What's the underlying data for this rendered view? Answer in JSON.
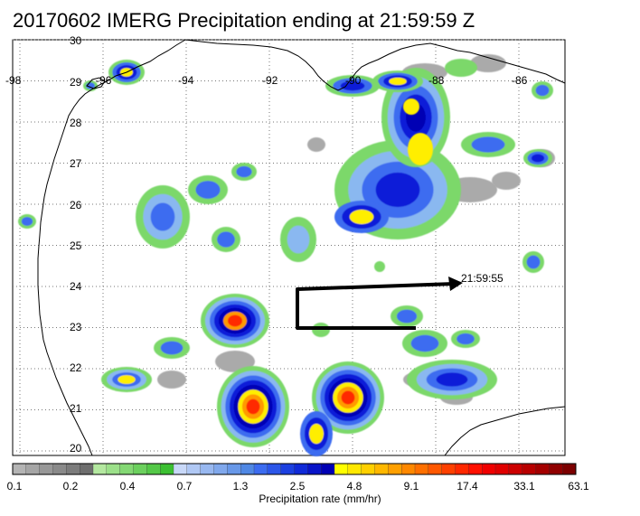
{
  "title": "20170602 IMERG Precipitation ending at 21:59:59 Z",
  "time_label": "21:59:55",
  "longitude_labels": [
    "-98",
    "-96",
    "-94",
    "-92",
    "-90",
    "-88",
    "-86"
  ],
  "latitude_labels": [
    "30",
    "29",
    "28",
    "27",
    "26",
    "25",
    "24",
    "23",
    "22",
    "21",
    "20"
  ],
  "colorbar": {
    "title": "Precipitation rate (mm/hr)",
    "tick_labels": [
      "0.1",
      "0.2",
      "0.4",
      "0.7",
      "1.3",
      "2.5",
      "4.8",
      "9.1",
      "17.4",
      "33.1",
      "63.1"
    ],
    "colors": [
      "#b4b4b4",
      "#a6a6a6",
      "#989898",
      "#8a8a8a",
      "#7c7c7c",
      "#6e6e6e",
      "#b4e8a0",
      "#9ce08a",
      "#84d874",
      "#6cd05e",
      "#54c848",
      "#3cc032",
      "#c8d8f8",
      "#b0c8f4",
      "#98b8f0",
      "#80a8ec",
      "#6898e8",
      "#5088e4",
      "#3c6cf0",
      "#2c56e8",
      "#1c40e0",
      "#102ad8",
      "#0814c8",
      "#0000b4",
      "#ffff00",
      "#ffe800",
      "#ffd000",
      "#ffb800",
      "#ffa000",
      "#ff8800",
      "#ff7000",
      "#ff5800",
      "#ff4000",
      "#ff2800",
      "#ff1000",
      "#f00000",
      "#e00000",
      "#cc0000",
      "#b80000",
      "#a40000",
      "#900000",
      "#7c0000"
    ]
  },
  "colors": {
    "coastline": "#000000",
    "gridlines": "#777777",
    "track": "#000000"
  }
}
